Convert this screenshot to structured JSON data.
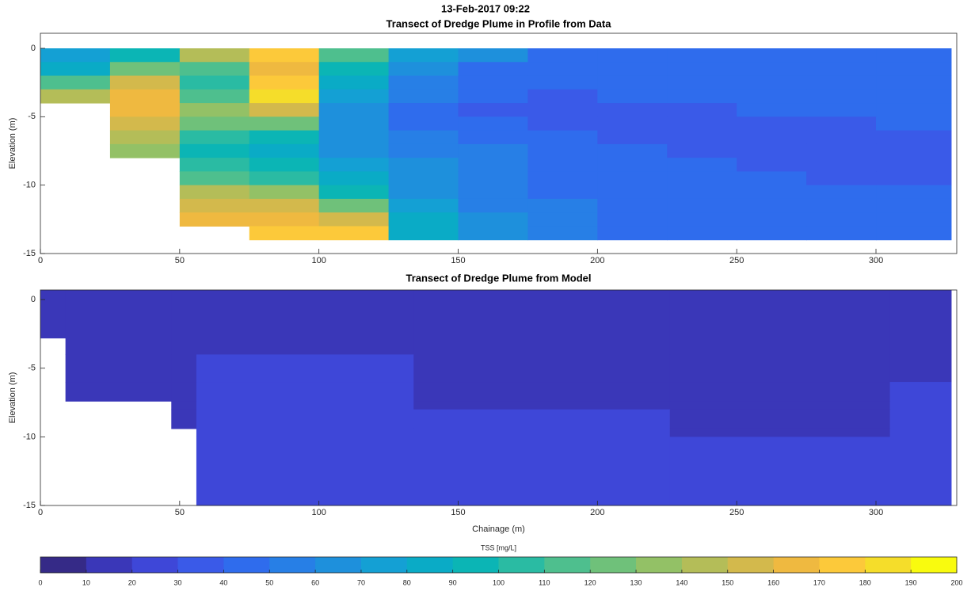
{
  "figure": {
    "title": "13-Feb-2017 09:22",
    "colorbar": {
      "label": "TSS [mg/L]",
      "clim": [
        0,
        200
      ],
      "ticks": [
        0,
        10,
        20,
        30,
        40,
        50,
        60,
        70,
        80,
        90,
        100,
        110,
        120,
        130,
        140,
        150,
        160,
        170,
        180,
        190,
        200
      ],
      "colors": [
        "#352a87",
        "#3a37b8",
        "#3e47d8",
        "#3a5ae8",
        "#2f6ced",
        "#277fe6",
        "#1e90dc",
        "#14a0d4",
        "#0aabc6",
        "#0bb5b5",
        "#2abba3",
        "#4ebf8e",
        "#6fc17a",
        "#93c166",
        "#b4bd58",
        "#d3b94c",
        "#efb940",
        "#fcc93a",
        "#f5dd2a",
        "#f9fb0e"
      ]
    }
  },
  "chart_data": [
    {
      "type": "heatmap",
      "title": "Transect of Dredge Plume in Profile from Data",
      "ylabel": "Elevation (m)",
      "xlim": [
        0,
        329
      ],
      "ylim": [
        -15,
        1.1
      ],
      "xticks": [
        0,
        50,
        100,
        150,
        200,
        250,
        300
      ],
      "yticks": [
        -15,
        -10,
        -5,
        0
      ],
      "x_edges": [
        0,
        25,
        50,
        75,
        100,
        125,
        150,
        175,
        200,
        225,
        250,
        275,
        300,
        327
      ],
      "y_edges": [
        0,
        -1,
        -2,
        -3,
        -4,
        -5,
        -6,
        -7,
        -8,
        -9,
        -10,
        -11,
        -12,
        -13,
        -14,
        -15
      ],
      "values": [
        [
          70,
          90,
          140,
          170,
          110,
          70,
          60,
          40,
          40,
          40,
          40,
          40,
          40
        ],
        [
          80,
          120,
          110,
          160,
          90,
          60,
          40,
          40,
          40,
          40,
          40,
          40,
          40
        ],
        [
          110,
          150,
          100,
          170,
          80,
          50,
          40,
          40,
          40,
          40,
          40,
          40,
          40
        ],
        [
          140,
          160,
          110,
          180,
          70,
          50,
          40,
          30,
          40,
          40,
          40,
          40,
          40
        ],
        [
          null,
          160,
          130,
          150,
          60,
          40,
          30,
          30,
          30,
          30,
          40,
          40,
          40
        ],
        [
          null,
          150,
          120,
          120,
          60,
          40,
          40,
          30,
          30,
          30,
          30,
          30,
          40
        ],
        [
          null,
          140,
          100,
          90,
          60,
          50,
          40,
          40,
          30,
          30,
          30,
          30,
          30
        ],
        [
          null,
          130,
          90,
          80,
          60,
          50,
          50,
          40,
          40,
          30,
          30,
          30,
          30
        ],
        [
          null,
          null,
          100,
          90,
          70,
          60,
          50,
          40,
          40,
          40,
          30,
          30,
          30
        ],
        [
          null,
          null,
          110,
          100,
          80,
          60,
          50,
          40,
          40,
          40,
          40,
          30,
          30
        ],
        [
          null,
          null,
          140,
          130,
          90,
          60,
          50,
          40,
          40,
          40,
          40,
          40,
          40
        ],
        [
          null,
          null,
          150,
          150,
          120,
          70,
          50,
          50,
          40,
          40,
          40,
          40,
          40
        ],
        [
          null,
          null,
          160,
          160,
          150,
          80,
          60,
          50,
          40,
          40,
          40,
          40,
          40
        ],
        [
          null,
          null,
          null,
          170,
          170,
          80,
          60,
          50,
          40,
          40,
          40,
          40,
          40
        ],
        [
          null,
          null,
          null,
          null,
          null,
          null,
          null,
          null,
          null,
          null,
          null,
          null,
          null
        ]
      ]
    },
    {
      "type": "heatmap",
      "title": "Transect of Dredge Plume from Model",
      "ylabel": "Elevation (m)",
      "xlabel": "Chainage (m)",
      "xlim": [
        0,
        329
      ],
      "ylim": [
        -15,
        0.7
      ],
      "xticks": [
        0,
        50,
        100,
        150,
        200,
        250,
        300
      ],
      "yticks": [
        -15,
        -10,
        -5,
        0
      ],
      "x_edges": [
        0,
        9,
        47,
        56,
        134,
        226,
        305,
        327
      ],
      "y_edges": [
        0.7,
        -2.8,
        -4,
        -6,
        -7.4,
        -8,
        -9.4,
        -10,
        -15
      ],
      "values": [
        [
          12,
          12,
          12,
          12,
          12,
          12,
          12
        ],
        [
          null,
          12,
          12,
          12,
          12,
          12,
          12
        ],
        [
          null,
          12,
          12,
          25,
          12,
          12,
          12
        ],
        [
          null,
          12,
          12,
          25,
          12,
          12,
          25
        ],
        [
          null,
          null,
          12,
          25,
          12,
          12,
          25
        ],
        [
          null,
          null,
          12,
          25,
          25,
          12,
          25
        ],
        [
          null,
          null,
          null,
          25,
          25,
          12,
          25
        ],
        [
          null,
          null,
          null,
          25,
          25,
          25,
          25
        ]
      ]
    }
  ]
}
